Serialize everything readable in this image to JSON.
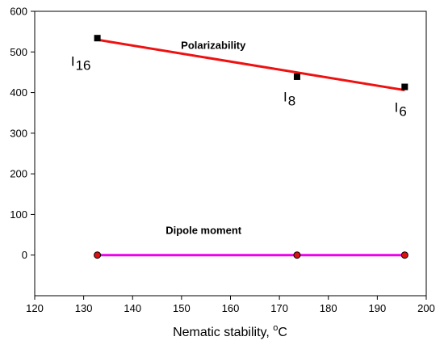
{
  "chart_data": {
    "type": "line",
    "xlabel": "Nematic stability, ",
    "xlabel_unit": "C",
    "xlabel_degree": "o",
    "ylabel": "",
    "title": "",
    "xlim": [
      120,
      200
    ],
    "ylim": [
      -100,
      600
    ],
    "x_ticks": [
      120,
      130,
      140,
      150,
      160,
      170,
      180,
      190,
      200
    ],
    "y_ticks": [
      0,
      100,
      200,
      300,
      400,
      500,
      600
    ],
    "grid": false,
    "series": [
      {
        "marker": "square",
        "marker_color": "#000000",
        "line_color": "#ee1111",
        "points": [
          {
            "x": 132.8,
            "y": 534
          },
          {
            "x": 173.6,
            "y": 439
          },
          {
            "x": 195.6,
            "y": 414
          }
        ],
        "fit_line": [
          {
            "x": 132.8,
            "y": 530
          },
          {
            "x": 195.6,
            "y": 406
          }
        ]
      },
      {
        "marker": "circle",
        "marker_color": "#dd1111",
        "line_color": "#ee00ee",
        "points": [
          {
            "x": 132.8,
            "y": 0
          },
          {
            "x": 173.6,
            "y": 0
          },
          {
            "x": 195.6,
            "y": 0
          }
        ],
        "fit_line": [
          {
            "x": 132.8,
            "y": 0
          },
          {
            "x": 195.6,
            "y": 0
          }
        ]
      }
    ],
    "annotations": [
      {
        "text": "Polarizability",
        "x": 156.5,
        "y": 508
      },
      {
        "text": "Dipole moment",
        "x": 154.5,
        "y": 52
      }
    ],
    "point_labels": [
      {
        "main": "I",
        "sub": "16",
        "x": 127.4,
        "y": 466
      },
      {
        "main": "I",
        "sub": "8",
        "x": 170.8,
        "y": 378
      },
      {
        "main": "I",
        "sub": "6",
        "x": 193.5,
        "y": 352
      }
    ]
  }
}
